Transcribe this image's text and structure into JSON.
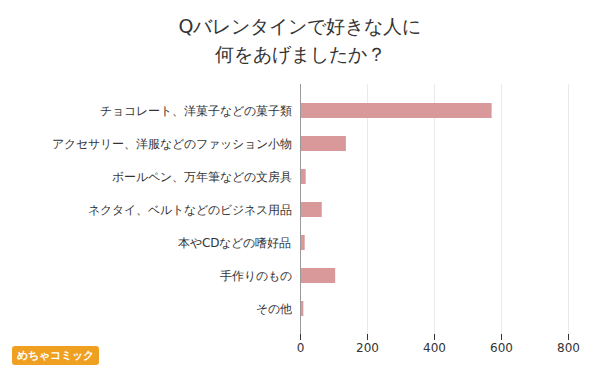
{
  "chart_data": {
    "type": "bar",
    "orientation": "horizontal",
    "title": "Qバレンタインで好きな人に\n何をあげましたか？",
    "categories": [
      "チョコレート、洋菓子などの菓子類",
      "アクセサリー、洋服などのファッション小物",
      "ボールペン、万年筆などの文房具",
      "ネクタイ、ベルトなどのビジネス用品",
      "本やCDなどの嗜好品",
      "手作りのもの",
      "その他"
    ],
    "values": [
      572,
      137,
      17,
      65,
      14,
      105,
      10
    ],
    "color": "#d9999b",
    "xlim": [
      0,
      800
    ],
    "xticks": [
      0,
      200,
      400,
      600,
      800
    ],
    "grid": true,
    "annotations": [
      "めちゃコミック"
    ]
  }
}
